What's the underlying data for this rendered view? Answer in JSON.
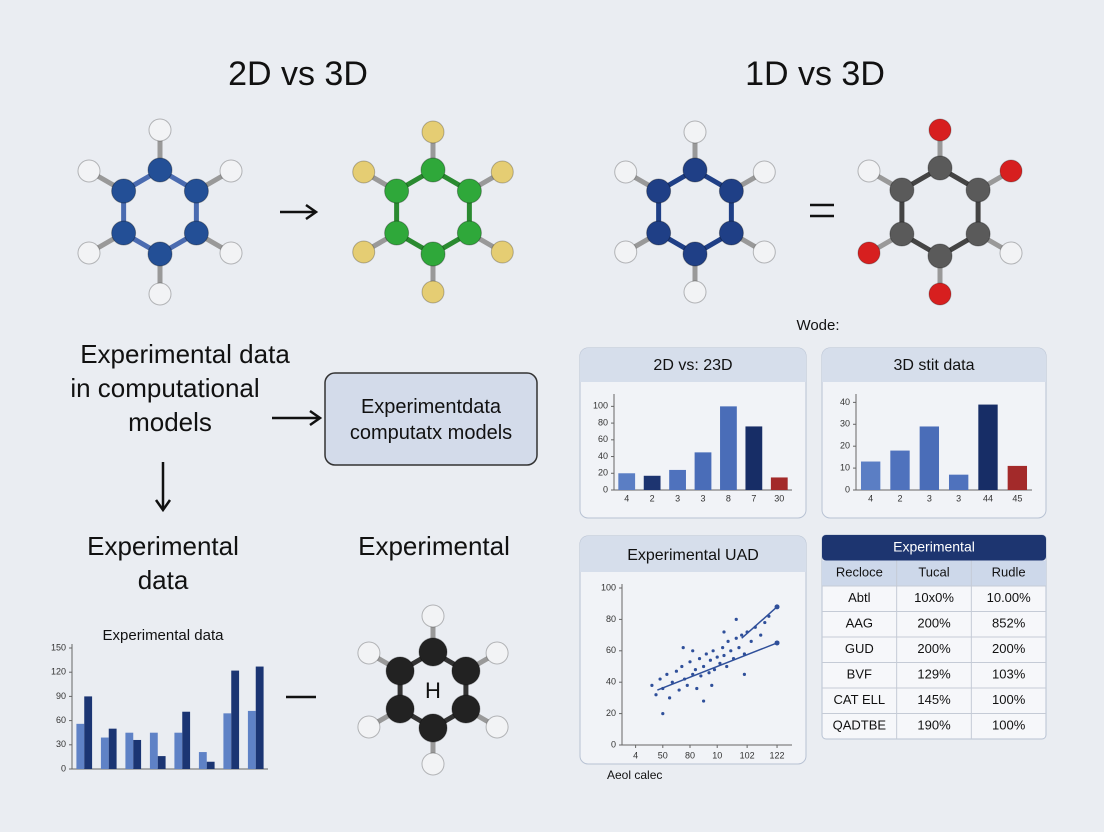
{
  "header": {
    "left_title": "2D vs 3D",
    "right_title": "1D vs 3D",
    "legend_note": "Wode:"
  },
  "flow": {
    "left_text": "Experimental data in computational models",
    "box_text": "Experimentdata computatx models",
    "lower_left": "Experimental data",
    "lower_middle": "Experimental",
    "atom_label": "H",
    "footer_note": "Aeol calec"
  },
  "table": {
    "title": "Experimental",
    "columns": [
      "Recloce",
      "Tucal",
      "Rudle"
    ],
    "rows": [
      [
        "Abtl",
        "10x0%",
        "10.00%"
      ],
      [
        "AAG",
        "200%",
        "852%"
      ],
      [
        "GUD",
        "200%",
        "200%"
      ],
      [
        "BVF",
        "129%",
        "103%"
      ],
      [
        "CAT ELL",
        "145%",
        "100%"
      ],
      [
        "QADTBE",
        "190%",
        "100%"
      ]
    ]
  },
  "chart_data": [
    {
      "type": "bar",
      "title": "2D vs: 23D",
      "categories": [
        "4",
        "2",
        "3",
        "3",
        "8",
        "7",
        "30"
      ],
      "values": [
        20,
        17,
        24,
        45,
        100,
        76,
        15
      ],
      "colors": [
        "#5b7ec4",
        "#1d3470",
        "#4f72bd",
        "#4a6db8",
        "#4a6db8",
        "#172d66",
        "#a32a2a"
      ],
      "ylim": [
        0,
        110
      ],
      "yticks": [
        0,
        20,
        40,
        60,
        80,
        100
      ]
    },
    {
      "type": "bar",
      "title": "3D stit data",
      "categories": [
        "4",
        "2",
        "3",
        "3",
        "44",
        "45"
      ],
      "values": [
        13,
        18,
        29,
        7,
        39,
        11
      ],
      "colors": [
        "#5b7ec4",
        "#4f72bd",
        "#4a6db8",
        "#4f72bd",
        "#172d66",
        "#a32a2a"
      ],
      "ylim": [
        0,
        42
      ],
      "yticks": [
        0,
        10,
        20,
        30,
        40
      ]
    },
    {
      "type": "scatter",
      "title": "Experimental UAD",
      "x": [
        22,
        25,
        28,
        30,
        33,
        35,
        37,
        40,
        42,
        44,
        46,
        48,
        50,
        52,
        54,
        55,
        57,
        58,
        60,
        62,
        64,
        65,
        67,
        68,
        70,
        72,
        74,
        75,
        77,
        78,
        80,
        82,
        84,
        86,
        88,
        90,
        92,
        95,
        98,
        102,
        105,
        108,
        30,
        45,
        60,
        75,
        90,
        52,
        66,
        84
      ],
      "values": [
        38,
        32,
        42,
        36,
        45,
        30,
        40,
        47,
        35,
        50,
        42,
        38,
        53,
        45,
        48,
        36,
        55,
        44,
        50,
        58,
        46,
        54,
        60,
        48,
        56,
        52,
        62,
        57,
        50,
        66,
        60,
        55,
        68,
        62,
        70,
        58,
        72,
        66,
        75,
        70,
        78,
        82,
        20,
        62,
        28,
        72,
        45,
        60,
        38,
        80
      ],
      "color": "#2f4f9a",
      "lines": [
        {
          "x": [
            26,
            114
          ],
          "values": [
            35,
            65
          ],
          "color": "#2f4f9a"
        },
        {
          "x": [
            88,
            114
          ],
          "values": [
            68,
            88
          ],
          "color": "#2f4f9a"
        }
      ],
      "xlim": [
        0,
        125
      ],
      "xticks": [
        {
          "value": 10,
          "label": "4"
        },
        {
          "value": 30,
          "label": "50"
        },
        {
          "value": 50,
          "label": "80"
        },
        {
          "value": 70,
          "label": "10"
        },
        {
          "value": 92,
          "label": "102"
        },
        {
          "value": 114,
          "label": "122"
        }
      ],
      "ylim": [
        0,
        100
      ],
      "yticks": [
        0,
        20,
        40,
        60,
        80,
        100
      ]
    },
    {
      "type": "grouped_bar",
      "title": "Experimental data",
      "categories": [
        null,
        null,
        null,
        null,
        null,
        null,
        null,
        null
      ],
      "series": [
        {
          "color": "#5f82c6",
          "values": [
            56,
            39,
            45,
            45,
            45,
            21,
            69,
            72
          ]
        },
        {
          "color": "#1b3573",
          "values": [
            90,
            50,
            36,
            16,
            71,
            9,
            122,
            127
          ]
        }
      ],
      "ylim": [
        0,
        150
      ],
      "yticks": [
        0,
        30,
        60,
        90,
        120,
        150
      ]
    }
  ]
}
